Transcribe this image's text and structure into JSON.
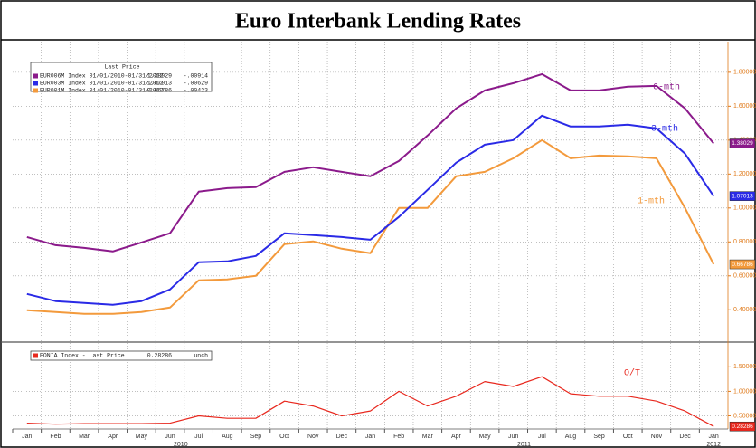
{
  "title": "Euro Interbank Lending Rates",
  "chart_data": [
    {
      "type": "line",
      "legend_header": "Last Price",
      "ylim": [
        0.22,
        1.97
      ],
      "yticks": [
        {
          "value": 0.4,
          "label": "0.40000"
        },
        {
          "value": 0.6,
          "label": "0.60000"
        },
        {
          "value": 0.8,
          "label": "0.80000"
        },
        {
          "value": 1.0,
          "label": "1.00000"
        },
        {
          "value": 1.2,
          "label": "1.20000"
        },
        {
          "value": 1.4,
          "label": "1.40000"
        },
        {
          "value": 1.6,
          "label": "1.60000"
        },
        {
          "value": 1.8,
          "label": "1.80000"
        }
      ],
      "grid": true,
      "series": [
        {
          "name": "EUR001M Index 01/01/2010-01/31/2012",
          "tag": "1-mth",
          "change": "-.00423",
          "color": "#f39a3c",
          "values": [
            0.397,
            0.387,
            0.376,
            0.376,
            0.387,
            0.413,
            0.573,
            0.579,
            0.6,
            0.787,
            0.803,
            0.76,
            0.733,
            1.0,
            1.0,
            1.187,
            1.213,
            1.293,
            1.4,
            1.293,
            1.309,
            1.304,
            1.293,
            1.0,
            0.66786
          ]
        },
        {
          "name": "EUR003M Index 01/01/2010-01/31/2012",
          "tag": "3-mth",
          "change": "-.00629",
          "color": "#2a2ae6",
          "values": [
            0.493,
            0.451,
            0.44,
            0.429,
            0.451,
            0.52,
            0.68,
            0.685,
            0.717,
            0.851,
            0.84,
            0.829,
            0.813,
            0.947,
            1.107,
            1.267,
            1.373,
            1.4,
            1.544,
            1.48,
            1.48,
            1.491,
            1.469,
            1.32,
            1.07013
          ]
        },
        {
          "name": "EUR006M Index 01/01/2010-01/31/2012",
          "tag": "6-mth",
          "change": "-.00914",
          "color": "#8b1a8b",
          "values": [
            0.829,
            0.781,
            0.765,
            0.744,
            0.797,
            0.851,
            1.096,
            1.117,
            1.123,
            1.213,
            1.24,
            1.213,
            1.187,
            1.277,
            1.427,
            1.587,
            1.693,
            1.736,
            1.789,
            1.693,
            1.693,
            1.715,
            1.72,
            1.587,
            1.38029
          ]
        }
      ]
    },
    {
      "type": "line",
      "categories": [
        "Jan",
        "Feb",
        "Mar",
        "Apr",
        "May",
        "Jun",
        "Jul",
        "Aug",
        "Sep",
        "Oct",
        "Nov",
        "Dec",
        "Jan",
        "Feb",
        "Mar",
        "Apr",
        "May",
        "Jun",
        "Jul",
        "Aug",
        "Sep",
        "Oct",
        "Nov",
        "Dec",
        "Jan"
      ],
      "years": [
        "2010",
        "2011",
        "2012"
      ],
      "ylim": [
        0.25,
        1.95
      ],
      "yticks": [
        {
          "value": 0.5,
          "label": "0.50000"
        },
        {
          "value": 1.0,
          "label": "1.00000"
        },
        {
          "value": 1.5,
          "label": "1.50000"
        }
      ],
      "grid": true,
      "series": [
        {
          "name": "EONIA Index - Last Price",
          "tag": "O/T",
          "change": "unch",
          "color": "#e8281e",
          "values": [
            0.35,
            0.33,
            0.34,
            0.34,
            0.34,
            0.35,
            0.5,
            0.45,
            0.45,
            0.8,
            0.7,
            0.5,
            0.6,
            1.0,
            0.7,
            0.9,
            1.2,
            1.1,
            1.3,
            0.95,
            0.9,
            0.9,
            0.8,
            0.6,
            0.28286
          ]
        }
      ]
    }
  ]
}
